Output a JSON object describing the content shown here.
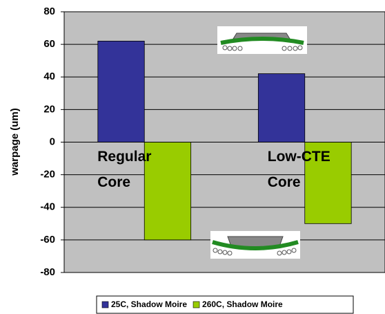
{
  "chart_data": {
    "type": "bar",
    "y_label": "warpage (um)",
    "categories": [
      "Regular Core",
      "Low-CTE Core"
    ],
    "series": [
      {
        "name": "25C, Shadow Moire",
        "color": "#333399",
        "values": [
          62,
          42
        ]
      },
      {
        "name": "260C, Shadow Moire",
        "color": "#99cc00",
        "values": [
          -60,
          -50
        ]
      }
    ],
    "ylim": [
      -80,
      80
    ],
    "yticks": [
      -80,
      -60,
      -40,
      -20,
      0,
      20,
      40,
      60,
      80
    ],
    "grid": true,
    "legend": "bottom",
    "background": "#c0c0c0"
  }
}
